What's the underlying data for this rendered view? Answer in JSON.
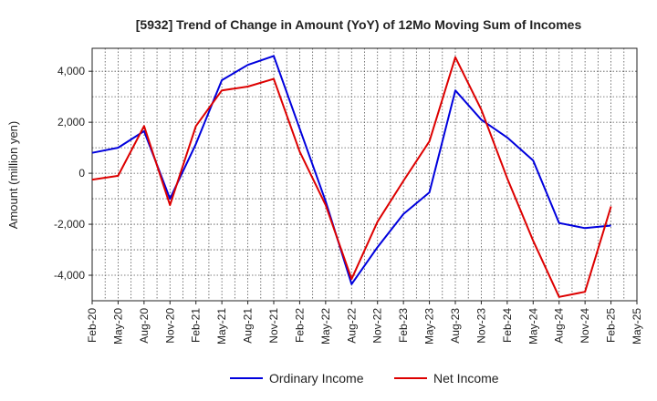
{
  "chart_data": {
    "type": "line",
    "title": "[5932]  Trend of Change in Amount (YoY) of 12Mo Moving Sum of Incomes",
    "ylabel": "Amount (million yen)",
    "xlabel": "",
    "ylim": [
      -5000,
      4900
    ],
    "yticks": [
      -4000,
      -2000,
      0,
      2000,
      4000
    ],
    "ytick_labels": [
      "-4,000",
      "-2,000",
      "0",
      "2,000",
      "4,000"
    ],
    "categories": [
      "Feb-20",
      "May-20",
      "Aug-20",
      "Nov-20",
      "Feb-21",
      "May-21",
      "Aug-21",
      "Nov-21",
      "Feb-22",
      "May-22",
      "Aug-22",
      "Nov-22",
      "Feb-23",
      "May-23",
      "Aug-23",
      "Nov-23",
      "Feb-24",
      "May-24",
      "Aug-24",
      "Nov-24",
      "Feb-25",
      "May-25"
    ],
    "grid": true,
    "legend_position": "bottom",
    "series": [
      {
        "name": "Ordinary Income",
        "color": "#0000dd",
        "values": [
          800,
          1000,
          1650,
          -1000,
          1150,
          3650,
          4250,
          4600,
          1750,
          -1100,
          -4350,
          -2900,
          -1600,
          -750,
          3250,
          2100,
          1400,
          500,
          -1950,
          -2150,
          -2050,
          null
        ]
      },
      {
        "name": "Net Income",
        "color": "#dd0000",
        "values": [
          -250,
          -100,
          1850,
          -1250,
          1850,
          3250,
          3400,
          3700,
          850,
          -1250,
          -4150,
          -1900,
          -300,
          1250,
          4550,
          2500,
          -200,
          -2650,
          -4850,
          -4650,
          -1300,
          null
        ]
      }
    ]
  }
}
